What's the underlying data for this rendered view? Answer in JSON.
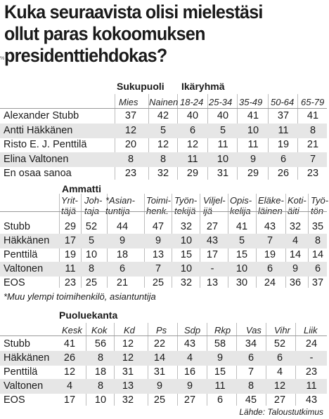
{
  "title_lines": [
    "Kuka seuraavista olisi mielestäsi",
    "ollut paras kokoomuksen",
    "presidenttiehdokas?"
  ],
  "percent_marker": "%",
  "table1": {
    "group_sukupuoli": "Sukupuoli",
    "group_ikaryhma": "Ikäryhmä",
    "columns": [
      "Mies",
      "Nainen",
      "18-24",
      "25-34",
      "35-49",
      "50-64",
      "65-79"
    ],
    "rows": [
      {
        "label": "Alexander Stubb",
        "values": [
          "37",
          "42",
          "40",
          "40",
          "41",
          "37",
          "41"
        ]
      },
      {
        "label": "Antti Häkkänen",
        "values": [
          "12",
          "5",
          "6",
          "5",
          "10",
          "11",
          "8"
        ]
      },
      {
        "label": "Risto E. J. Penttilä",
        "values": [
          "20",
          "12",
          "12",
          "11",
          "11",
          "19",
          "21"
        ]
      },
      {
        "label": "Elina Valtonen",
        "values": [
          "8",
          "8",
          "11",
          "10",
          "9",
          "6",
          "7"
        ]
      },
      {
        "label": "En osaa sanoa",
        "values": [
          "23",
          "32",
          "29",
          "31",
          "29",
          "26",
          "23"
        ]
      }
    ]
  },
  "table2": {
    "group": "Ammatti",
    "columns": [
      [
        "Yrit-",
        "täjä"
      ],
      [
        "Joh-",
        "taja"
      ],
      [
        "*Asian-",
        "tuntija"
      ],
      [
        "Toimi-",
        "henk."
      ],
      [
        "Työn-",
        "tekijä"
      ],
      [
        "Viljel-",
        "ijä"
      ],
      [
        "Opis-",
        "kelija"
      ],
      [
        "Eläke-",
        "läinen"
      ],
      [
        "Koti-",
        "äiti"
      ],
      [
        "Työ-",
        "tön"
      ]
    ],
    "rows": [
      {
        "label": "Stubb",
        "values": [
          "29",
          "52",
          "44",
          "47",
          "32",
          "27",
          "41",
          "43",
          "32",
          "35"
        ]
      },
      {
        "label": "Häkkänen",
        "values": [
          "17",
          "5",
          "9",
          "9",
          "10",
          "43",
          "5",
          "7",
          "4",
          "8"
        ]
      },
      {
        "label": "Penttilä",
        "values": [
          "19",
          "10",
          "18",
          "13",
          "15",
          "17",
          "15",
          "19",
          "14",
          "14"
        ]
      },
      {
        "label": "Valtonen",
        "values": [
          "11",
          "8",
          "6",
          "7",
          "10",
          "-",
          "10",
          "6",
          "9",
          "6"
        ]
      },
      {
        "label": "EOS",
        "values": [
          "23",
          "25",
          "21",
          "25",
          "32",
          "13",
          "30",
          "24",
          "36",
          "37"
        ]
      }
    ],
    "footnote": "*Muu ylempi toimihenkilö, asiantuntija"
  },
  "table3": {
    "group": "Puoluekanta",
    "columns": [
      "Kesk",
      "Kok",
      "Kd",
      "Ps",
      "Sdp",
      "Rkp",
      "Vas",
      "Vihr",
      "Liik"
    ],
    "rows": [
      {
        "label": "Stubb",
        "values": [
          "41",
          "56",
          "12",
          "22",
          "43",
          "58",
          "34",
          "52",
          "24"
        ]
      },
      {
        "label": "Häkkänen",
        "values": [
          "26",
          "8",
          "12",
          "14",
          "4",
          "9",
          "6",
          "6",
          "-"
        ]
      },
      {
        "label": "Penttilä",
        "values": [
          "12",
          "18",
          "31",
          "31",
          "16",
          "15",
          "7",
          "4",
          "23"
        ]
      },
      {
        "label": "Valtonen",
        "values": [
          "4",
          "8",
          "13",
          "9",
          "9",
          "11",
          "8",
          "12",
          "11"
        ]
      },
      {
        "label": "EOS",
        "values": [
          "17",
          "10",
          "32",
          "25",
          "27",
          "6",
          "45",
          "27",
          "43"
        ]
      }
    ]
  },
  "source": "Lähde: Taloustutkimus"
}
